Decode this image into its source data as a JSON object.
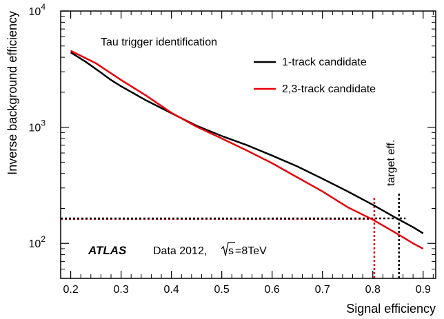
{
  "chart_data": {
    "type": "line",
    "title": "",
    "xlabel": "Signal efficiency",
    "ylabel": "Inverse background efficiency",
    "xlim": [
      0.18,
      0.925
    ],
    "ylim": [
      50,
      10000
    ],
    "yscale": "log",
    "x_ticks": [
      0.2,
      0.3,
      0.4,
      0.5,
      0.6,
      0.7,
      0.8,
      0.9
    ],
    "x_tick_labels": [
      "0.2",
      "0.3",
      "0.4",
      "0.5",
      "0.6",
      "0.7",
      "0.8",
      "0.9"
    ],
    "y_major_ticks": [
      100,
      1000,
      10000
    ],
    "y_tick_bases": [
      "10",
      "10",
      "10"
    ],
    "y_tick_exponents": [
      "2",
      "3",
      "4"
    ],
    "grid": false,
    "legend_position": "top-right",
    "series": [
      {
        "name": "1-track candidate",
        "color": "#000000",
        "x": [
          0.2,
          0.23,
          0.26,
          0.28,
          0.3,
          0.35,
          0.4,
          0.45,
          0.5,
          0.55,
          0.6,
          0.65,
          0.7,
          0.75,
          0.8,
          0.85,
          0.88,
          0.9
        ],
        "y": [
          4400,
          3650,
          2950,
          2550,
          2250,
          1700,
          1320,
          1030,
          840,
          700,
          570,
          460,
          360,
          280,
          215,
          162,
          138,
          122
        ]
      },
      {
        "name": "2,3-track candidate",
        "color": "#e8000b",
        "x": [
          0.2,
          0.25,
          0.3,
          0.35,
          0.4,
          0.45,
          0.5,
          0.55,
          0.6,
          0.65,
          0.7,
          0.75,
          0.8,
          0.85,
          0.88,
          0.9
        ],
        "y": [
          4550,
          3550,
          2550,
          1870,
          1330,
          1010,
          800,
          630,
          490,
          370,
          280,
          205,
          160,
          120,
          100,
          90
        ]
      }
    ],
    "reference_lines": [
      {
        "color": "#e8000b",
        "orientation": "vertical",
        "x": 0.803,
        "y_range": [
          50,
          250
        ]
      },
      {
        "color": "#e8000b",
        "orientation": "horizontal",
        "y": 162,
        "x_range": [
          0.18,
          0.803
        ]
      },
      {
        "color": "#000000",
        "orientation": "vertical",
        "x": 0.852,
        "y_range": [
          50,
          270
        ]
      },
      {
        "color": "#000000",
        "orientation": "horizontal",
        "y": 164,
        "x_range": [
          0.18,
          0.865
        ]
      }
    ],
    "annotations": {
      "top_left": "Tau trigger identification",
      "experiment": "ATLAS",
      "dataset": "Data 2012,",
      "energy_root": "s",
      "energy_rest": "=8TeV",
      "target": "target eff."
    }
  }
}
